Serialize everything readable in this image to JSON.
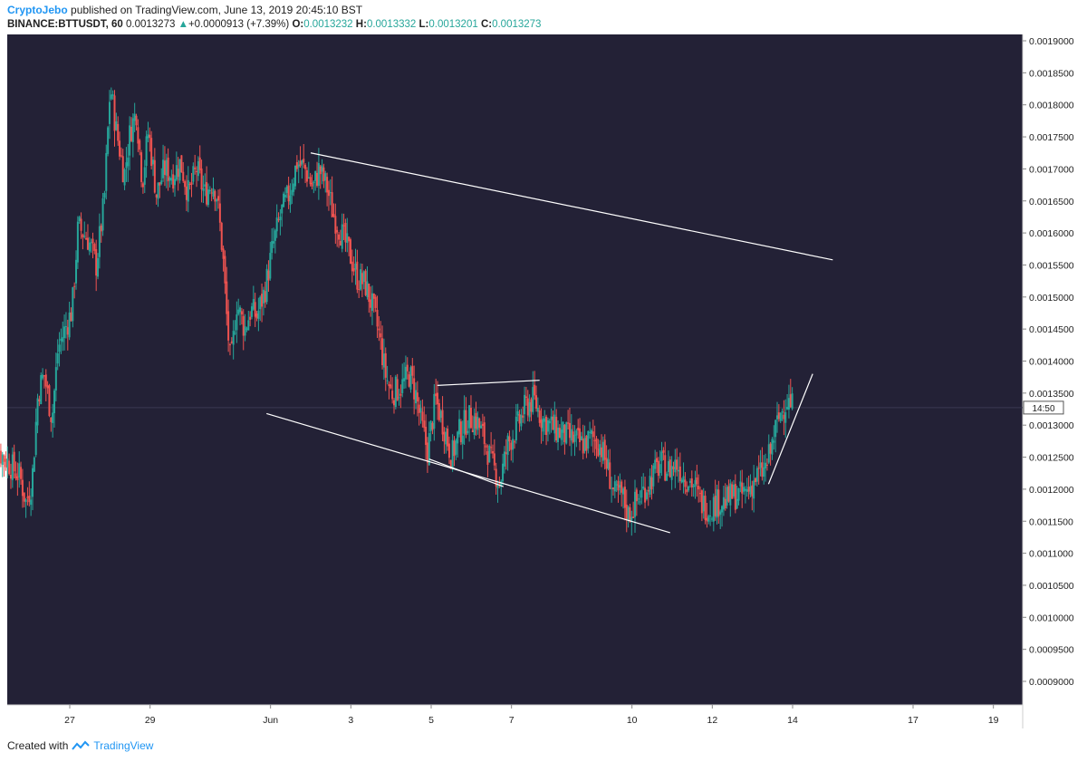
{
  "header": {
    "author": "CryptoJebo",
    "published_text": "published on TradingView.com, June 13, 2019 20:45:10 BST",
    "symbol": "BINANCE:BTTUSDT, 60",
    "last_price": "0.0013273",
    "change_arrow": "▲",
    "change": "+0.0000913 (+7.39%)",
    "o_label": "O:",
    "o_value": "0.0013232",
    "h_label": "H:",
    "h_value": "0.0013332",
    "l_label": "L:",
    "l_value": "0.0013201",
    "c_label": "C:",
    "c_value": "0.0013273"
  },
  "footer": {
    "created_with": "Created with",
    "brand": "TradingView"
  },
  "price_tag": "14:50",
  "colors": {
    "bg": "#232136",
    "up": "#26a69a",
    "down": "#ef5350",
    "trendline": "#ffffff",
    "grid": "#2e2c44",
    "axis_text": "#222222"
  },
  "chart_data": {
    "type": "candlestick",
    "title": "BINANCE:BTTUSDT, 60",
    "ylim": [
      0.00087,
      0.00192
    ],
    "y_ticks": [
      "0.0009000",
      "0.0009500",
      "0.0010000",
      "0.0010500",
      "0.0011000",
      "0.0011500",
      "0.0012000",
      "0.0012500",
      "0.0013000",
      "0.0013500",
      "0.0014000",
      "0.0014500",
      "0.0015000",
      "0.0015500",
      "0.0016000",
      "0.0016500",
      "0.0017000",
      "0.0017500",
      "0.0018000",
      "0.0018500",
      "0.0019000"
    ],
    "x_range_days": [
      24.95,
      20.5
    ],
    "x_ticks": [
      {
        "label": "27",
        "day": 27
      },
      {
        "label": "29",
        "day": 29
      },
      {
        "label": "Jun",
        "day": 32
      },
      {
        "label": "3",
        "day": 34
      },
      {
        "label": "5",
        "day": 36
      },
      {
        "label": "7",
        "day": 38
      },
      {
        "label": "10",
        "day": 41
      },
      {
        "label": "12",
        "day": 43
      },
      {
        "label": "14",
        "day": 45
      },
      {
        "label": "17",
        "day": 48
      },
      {
        "label": "19",
        "day": 50
      }
    ],
    "current_price": 0.0013273,
    "path_keypoints": [
      [
        24.95,
        0.00128
      ],
      [
        25.4,
        0.00125
      ],
      [
        25.8,
        0.00122
      ],
      [
        25.95,
        0.00118
      ],
      [
        26.1,
        0.00121
      ],
      [
        26.25,
        0.00135
      ],
      [
        26.4,
        0.00138
      ],
      [
        26.6,
        0.00131
      ],
      [
        26.75,
        0.00142
      ],
      [
        27.1,
        0.00148
      ],
      [
        27.25,
        0.00161
      ],
      [
        27.5,
        0.00159
      ],
      [
        27.7,
        0.00155
      ],
      [
        27.9,
        0.00165
      ],
      [
        28.05,
        0.00183
      ],
      [
        28.2,
        0.00176
      ],
      [
        28.4,
        0.00169
      ],
      [
        28.55,
        0.00176
      ],
      [
        28.7,
        0.00179
      ],
      [
        28.85,
        0.00168
      ],
      [
        29.0,
        0.00176
      ],
      [
        29.2,
        0.00166
      ],
      [
        29.4,
        0.0017
      ],
      [
        29.6,
        0.00169
      ],
      [
        29.8,
        0.00171
      ],
      [
        30.0,
        0.00166
      ],
      [
        30.2,
        0.0017
      ],
      [
        30.4,
        0.00166
      ],
      [
        30.6,
        0.00168
      ],
      [
        30.7,
        0.00166
      ],
      [
        30.85,
        0.00157
      ],
      [
        30.95,
        0.00147
      ],
      [
        31.05,
        0.00139
      ],
      [
        31.2,
        0.00149
      ],
      [
        31.4,
        0.00145
      ],
      [
        31.55,
        0.00148
      ],
      [
        31.7,
        0.00147
      ],
      [
        31.9,
        0.00151
      ],
      [
        32.1,
        0.00158
      ],
      [
        32.3,
        0.00163
      ],
      [
        32.5,
        0.00166
      ],
      [
        32.7,
        0.00171
      ],
      [
        32.9,
        0.0017
      ],
      [
        33.1,
        0.00167
      ],
      [
        33.25,
        0.0017
      ],
      [
        33.45,
        0.00167
      ],
      [
        33.6,
        0.00163
      ],
      [
        33.8,
        0.0016
      ],
      [
        34.0,
        0.00157
      ],
      [
        34.2,
        0.00153
      ],
      [
        34.4,
        0.00152
      ],
      [
        34.6,
        0.00148
      ],
      [
        34.75,
        0.00144
      ],
      [
        34.9,
        0.00138
      ],
      [
        35.05,
        0.00135
      ],
      [
        35.3,
        0.00136
      ],
      [
        35.5,
        0.00138
      ],
      [
        35.65,
        0.00135
      ],
      [
        35.8,
        0.0013
      ],
      [
        35.95,
        0.00126
      ],
      [
        36.15,
        0.00134
      ],
      [
        36.35,
        0.0013
      ],
      [
        36.55,
        0.00125
      ],
      [
        36.75,
        0.00129
      ],
      [
        36.95,
        0.00131
      ],
      [
        37.15,
        0.00131
      ],
      [
        37.35,
        0.00128
      ],
      [
        37.55,
        0.00124
      ],
      [
        37.75,
        0.00121
      ],
      [
        37.95,
        0.00127
      ],
      [
        38.2,
        0.0013
      ],
      [
        38.4,
        0.00133
      ],
      [
        38.6,
        0.00134
      ],
      [
        38.8,
        0.00131
      ],
      [
        39.0,
        0.0013
      ],
      [
        39.2,
        0.00129
      ],
      [
        39.5,
        0.00128
      ],
      [
        39.8,
        0.00127
      ],
      [
        40.05,
        0.00128
      ],
      [
        40.25,
        0.00127
      ],
      [
        40.45,
        0.00123
      ],
      [
        40.6,
        0.00119
      ],
      [
        40.8,
        0.00119
      ],
      [
        40.95,
        0.00116
      ],
      [
        41.15,
        0.00118
      ],
      [
        41.35,
        0.0012
      ],
      [
        41.55,
        0.00122
      ],
      [
        41.75,
        0.00124
      ],
      [
        41.95,
        0.00123
      ],
      [
        42.15,
        0.00124
      ],
      [
        42.35,
        0.00122
      ],
      [
        42.55,
        0.00121
      ],
      [
        42.75,
        0.00118
      ],
      [
        42.95,
        0.00117
      ],
      [
        43.15,
        0.00118
      ],
      [
        43.35,
        0.00118
      ],
      [
        43.55,
        0.00119
      ],
      [
        43.75,
        0.00119
      ],
      [
        43.95,
        0.0012
      ],
      [
        44.15,
        0.00122
      ],
      [
        44.35,
        0.00123
      ],
      [
        44.5,
        0.00126
      ],
      [
        44.6,
        0.00129
      ],
      [
        44.75,
        0.00132
      ],
      [
        44.9,
        0.00134
      ],
      [
        45.0,
        0.00133
      ]
    ],
    "trendlines": [
      {
        "name": "upper-channel",
        "from": [
          33.0,
          0.001725
        ],
        "to": [
          46.0,
          0.001558
        ]
      },
      {
        "name": "lower-channel",
        "from": [
          31.9,
          0.001318
        ],
        "to": [
          41.95,
          0.001132
        ]
      },
      {
        "name": "mid-top",
        "from": [
          36.15,
          0.001362
        ],
        "to": [
          38.7,
          0.00137
        ]
      },
      {
        "name": "mid-bottom",
        "from": [
          35.95,
          0.001247
        ],
        "to": [
          37.8,
          0.001204
        ]
      },
      {
        "name": "rising-support",
        "from": [
          44.4,
          0.001208
        ],
        "to": [
          45.5,
          0.00138
        ]
      }
    ]
  }
}
